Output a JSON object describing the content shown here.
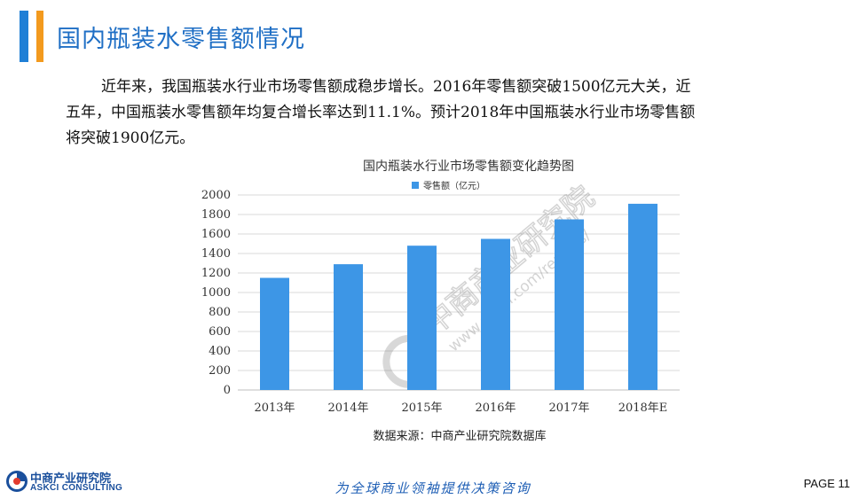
{
  "header": {
    "title": "国内瓶装水零售额情况",
    "accent_blue": "#1f7fd6",
    "accent_orange": "#f39a1e"
  },
  "body": {
    "paragraph_lines": [
      "近年来，我国瓶装水行业市场零售额成稳步增长。2016年零售额突破1500亿元大关，近",
      "五年，中国瓶装水零售额年均复合增长率达到11.1%。预计2018年中国瓶装水行业市场零售额",
      "将突破1900亿元。"
    ]
  },
  "chart_data": {
    "type": "bar",
    "title": "国内瓶装水行业市场零售额变化趋势图",
    "legend": {
      "label": "零售额（亿元）",
      "position": "top-center"
    },
    "categories": [
      "2013年",
      "2014年",
      "2015年",
      "2016年",
      "2017年",
      "2018年E"
    ],
    "series": [
      {
        "name": "零售额（亿元）",
        "values": [
          1150,
          1290,
          1480,
          1550,
          1750,
          1910
        ],
        "color": "#3d96e6"
      }
    ],
    "xlabel": "",
    "ylabel": "",
    "ylim": [
      0,
      2000
    ],
    "yticks": [
      0,
      200,
      400,
      600,
      800,
      1000,
      1200,
      1400,
      1600,
      1800,
      2000
    ],
    "grid": true,
    "source": "数据来源：中商产业研究院数据库",
    "watermark": "中商产业研究院 www.askci.com/reports/"
  },
  "footer": {
    "logo_cn": "中商产业研究院",
    "logo_en": "ASKCI CONSULTING",
    "slogan": "为全球商业领袖提供决策咨询",
    "page_label": "PAGE 11"
  }
}
